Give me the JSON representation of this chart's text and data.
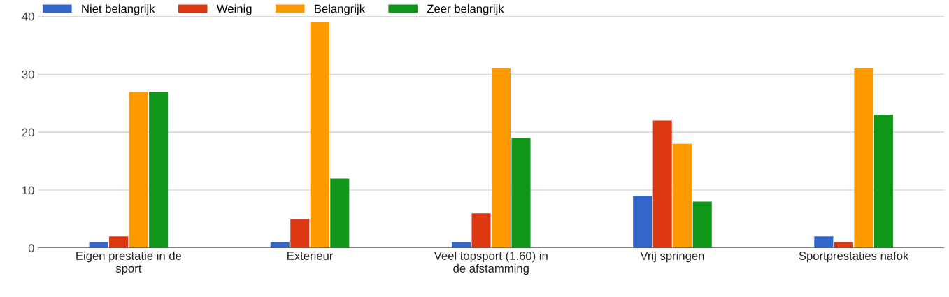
{
  "chart_data": {
    "type": "bar",
    "categories": [
      "Eigen prestatie in de\nsport",
      "Exterieur",
      "Veel topsport (1.60) in\nde afstamming",
      "Vrij springen",
      "Sportprestaties nafok"
    ],
    "series": [
      {
        "name": "Niet belangrijk",
        "color": "#3366cc",
        "values": [
          1,
          1,
          1,
          9,
          2
        ]
      },
      {
        "name": "Weinig",
        "color": "#dc3912",
        "values": [
          2,
          5,
          6,
          22,
          1
        ]
      },
      {
        "name": "Belangrijk",
        "color": "#ff9900",
        "values": [
          27,
          39,
          31,
          18,
          31
        ]
      },
      {
        "name": "Zeer belangrijk",
        "color": "#109618",
        "values": [
          27,
          12,
          19,
          8,
          23
        ]
      }
    ],
    "ylim": [
      0,
      40
    ],
    "yticks": [
      0,
      10,
      20,
      30,
      40
    ],
    "grid": "y",
    "legend": "top left"
  }
}
